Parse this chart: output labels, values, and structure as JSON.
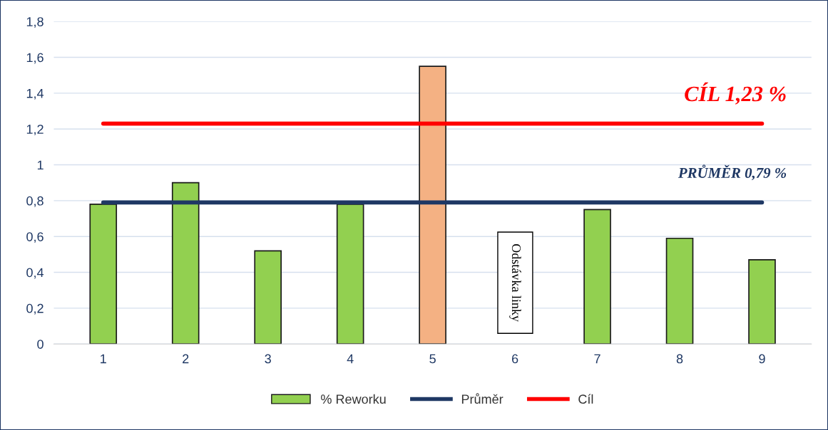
{
  "chart_data": {
    "type": "bar",
    "categories": [
      "1",
      "2",
      "3",
      "4",
      "5",
      "6",
      "7",
      "8",
      "9"
    ],
    "series": [
      {
        "name": "% Reworku",
        "colors": [
          "#92d050",
          "#92d050",
          "#92d050",
          "#92d050",
          "#f4b183",
          "#92d050",
          "#92d050",
          "#92d050",
          "#92d050"
        ],
        "color": "#92d050",
        "values": [
          0.78,
          0.9,
          0.52,
          0.78,
          1.55,
          null,
          0.75,
          0.59,
          0.47
        ]
      },
      {
        "name": "Průměr",
        "type": "line",
        "color": "#1f3864",
        "values": [
          0.79,
          0.79,
          0.79,
          0.79,
          0.79,
          0.79,
          0.79,
          0.79,
          0.79
        ]
      },
      {
        "name": "Cíl",
        "type": "line",
        "color": "#ff0000",
        "values": [
          1.23,
          1.23,
          1.23,
          1.23,
          1.23,
          1.23,
          1.23,
          1.23,
          1.23
        ]
      }
    ],
    "ylim": [
      0,
      1.8
    ],
    "yticks": [
      {
        "value": 0,
        "label": "0"
      },
      {
        "value": 0.2,
        "label": "0,2"
      },
      {
        "value": 0.4,
        "label": "0,4"
      },
      {
        "value": 0.6,
        "label": "0,6"
      },
      {
        "value": 0.8,
        "label": "0,8"
      },
      {
        "value": 1,
        "label": "1"
      },
      {
        "value": 1.2,
        "label": "1,2"
      },
      {
        "value": 1.4,
        "label": "1,4"
      },
      {
        "value": 1.6,
        "label": "1,6"
      },
      {
        "value": 1.8,
        "label": "1,8"
      }
    ],
    "grid": "y",
    "legend": "bottom",
    "annotations": [
      {
        "text": "CÍL 1,23 %",
        "x": "9",
        "y": 1.23
      },
      {
        "text": "PRŮMĚR 0,79 %",
        "x": "9",
        "y": 0.79
      },
      "Odstávka linky"
    ]
  }
}
